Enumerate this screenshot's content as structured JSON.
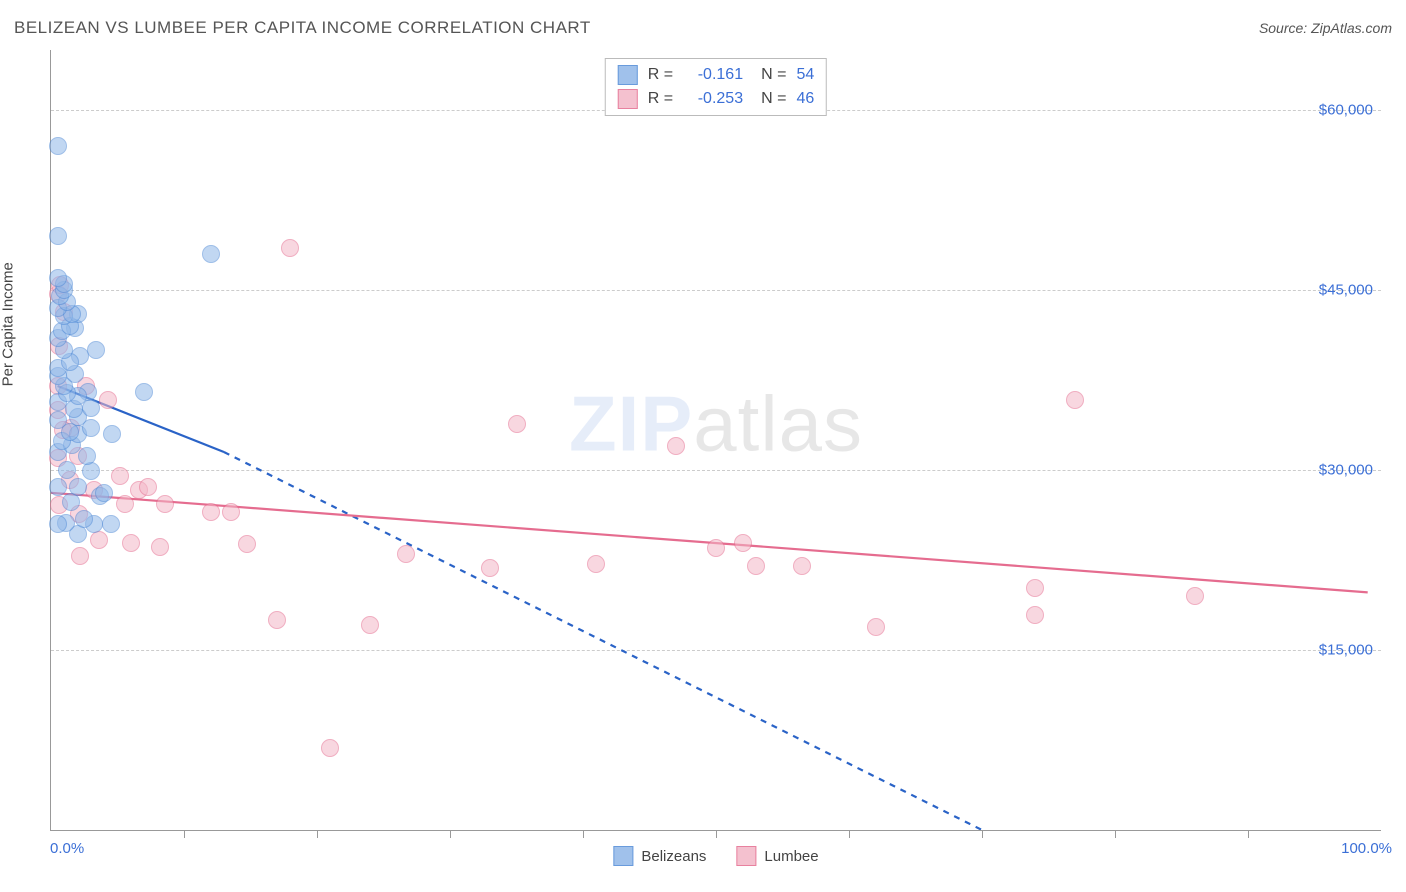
{
  "title": "BELIZEAN VS LUMBEE PER CAPITA INCOME CORRELATION CHART",
  "source": "Source: ZipAtlas.com",
  "watermark_zip": "ZIP",
  "watermark_atlas": "atlas",
  "yaxis_label": "Per Capita Income",
  "xaxis_left_label": "0.0%",
  "xaxis_right_label": "100.0%",
  "chart": {
    "type": "scatter",
    "xlim": [
      0,
      100
    ],
    "ylim": [
      0,
      65000
    ],
    "y_ticks": [
      15000,
      30000,
      45000,
      60000
    ],
    "y_tick_labels": [
      "$15,000",
      "$30,000",
      "$45,000",
      "$60,000"
    ],
    "x_ticks": [
      10,
      20,
      30,
      40,
      50,
      60,
      70,
      80,
      90
    ],
    "grid_color": "#cccccc",
    "axis_color": "#999999",
    "background_color": "#ffffff",
    "marker_radius": 9,
    "marker_stroke_width": 1.4,
    "series": [
      {
        "name": "Belizeans",
        "fill_color": "#90b7e8",
        "stroke_color": "#4f8ad6",
        "fill_opacity": 0.55,
        "r_value": "-0.161",
        "n_value": "54",
        "trend_line": {
          "solid": {
            "x1": 0.5,
            "y1": 37000,
            "x2": 13,
            "y2": 31500
          },
          "dashed": {
            "x1": 13,
            "y1": 31500,
            "x2": 70,
            "y2": 0
          },
          "color": "#2a63c7",
          "width": 2.2
        },
        "points": [
          [
            0.5,
            57000
          ],
          [
            0.5,
            49500
          ],
          [
            0.5,
            46000
          ],
          [
            1,
            45500
          ],
          [
            1,
            45000
          ],
          [
            0.7,
            44500
          ],
          [
            1.2,
            44000
          ],
          [
            0.5,
            43500
          ],
          [
            1.6,
            43000
          ],
          [
            1,
            42800
          ],
          [
            2,
            43000
          ],
          [
            1.4,
            42000
          ],
          [
            0.8,
            41600
          ],
          [
            0.5,
            41000
          ],
          [
            1.8,
            41800
          ],
          [
            1,
            40000
          ],
          [
            1.4,
            39000
          ],
          [
            2.2,
            39500
          ],
          [
            0.5,
            38500
          ],
          [
            3.4,
            40000
          ],
          [
            1.8,
            38000
          ],
          [
            0.5,
            37800
          ],
          [
            1,
            37000
          ],
          [
            1.2,
            36400
          ],
          [
            2,
            36200
          ],
          [
            2.8,
            36500
          ],
          [
            0.5,
            35700
          ],
          [
            1.7,
            35100
          ],
          [
            3,
            35200
          ],
          [
            2,
            34400
          ],
          [
            0.5,
            34200
          ],
          [
            1.4,
            33200
          ],
          [
            3,
            33500
          ],
          [
            2,
            33000
          ],
          [
            0.8,
            32400
          ],
          [
            4.6,
            33000
          ],
          [
            1.6,
            32100
          ],
          [
            7,
            36500
          ],
          [
            0.5,
            31500
          ],
          [
            2.7,
            31200
          ],
          [
            1.2,
            30000
          ],
          [
            3,
            29900
          ],
          [
            4,
            28100
          ],
          [
            0.5,
            28600
          ],
          [
            2,
            28600
          ],
          [
            3.7,
            27800
          ],
          [
            1.5,
            27300
          ],
          [
            2.5,
            25900
          ],
          [
            0.5,
            25500
          ],
          [
            1.1,
            25600
          ],
          [
            4.5,
            25500
          ],
          [
            2,
            24700
          ],
          [
            3.2,
            25500
          ],
          [
            12,
            48000
          ]
        ]
      },
      {
        "name": "Lumbee",
        "fill_color": "#f3b7c7",
        "stroke_color": "#e56c8f",
        "fill_opacity": 0.55,
        "r_value": "-0.253",
        "n_value": "46",
        "trend_line": {
          "solid": {
            "x1": 0,
            "y1": 28100,
            "x2": 99,
            "y2": 19800
          },
          "color": "#e56c8f",
          "width": 2.2
        },
        "points": [
          [
            0.7,
            45400
          ],
          [
            0.5,
            44700
          ],
          [
            1,
            43200
          ],
          [
            0.6,
            40300
          ],
          [
            0.5,
            37000
          ],
          [
            2.6,
            37000
          ],
          [
            0.5,
            35000
          ],
          [
            4.3,
            35800
          ],
          [
            0.9,
            33300
          ],
          [
            1.5,
            33500
          ],
          [
            18,
            48500
          ],
          [
            35,
            33800
          ],
          [
            47,
            32000
          ],
          [
            77,
            35800
          ],
          [
            0.5,
            31000
          ],
          [
            2,
            31200
          ],
          [
            1.4,
            29200
          ],
          [
            5.2,
            29500
          ],
          [
            3.2,
            28300
          ],
          [
            7.3,
            28600
          ],
          [
            5.6,
            27200
          ],
          [
            6.6,
            28300
          ],
          [
            0.6,
            27100
          ],
          [
            2.1,
            26300
          ],
          [
            8.6,
            27200
          ],
          [
            52,
            23900
          ],
          [
            50,
            23500
          ],
          [
            53,
            22000
          ],
          [
            12,
            26500
          ],
          [
            13.5,
            26500
          ],
          [
            3.6,
            24200
          ],
          [
            2.2,
            22800
          ],
          [
            6,
            23900
          ],
          [
            8.2,
            23600
          ],
          [
            14.7,
            23800
          ],
          [
            26.7,
            23000
          ],
          [
            41,
            22200
          ],
          [
            33,
            21800
          ],
          [
            56.5,
            22000
          ],
          [
            62,
            16900
          ],
          [
            74,
            17900
          ],
          [
            74,
            20200
          ],
          [
            86,
            19500
          ],
          [
            24,
            17100
          ],
          [
            17,
            17500
          ],
          [
            21,
            6800
          ]
        ]
      }
    ]
  },
  "stats_box": {
    "r_label": "R =",
    "n_label": "N ="
  },
  "legend": {
    "items": [
      "Belizeans",
      "Lumbee"
    ]
  }
}
